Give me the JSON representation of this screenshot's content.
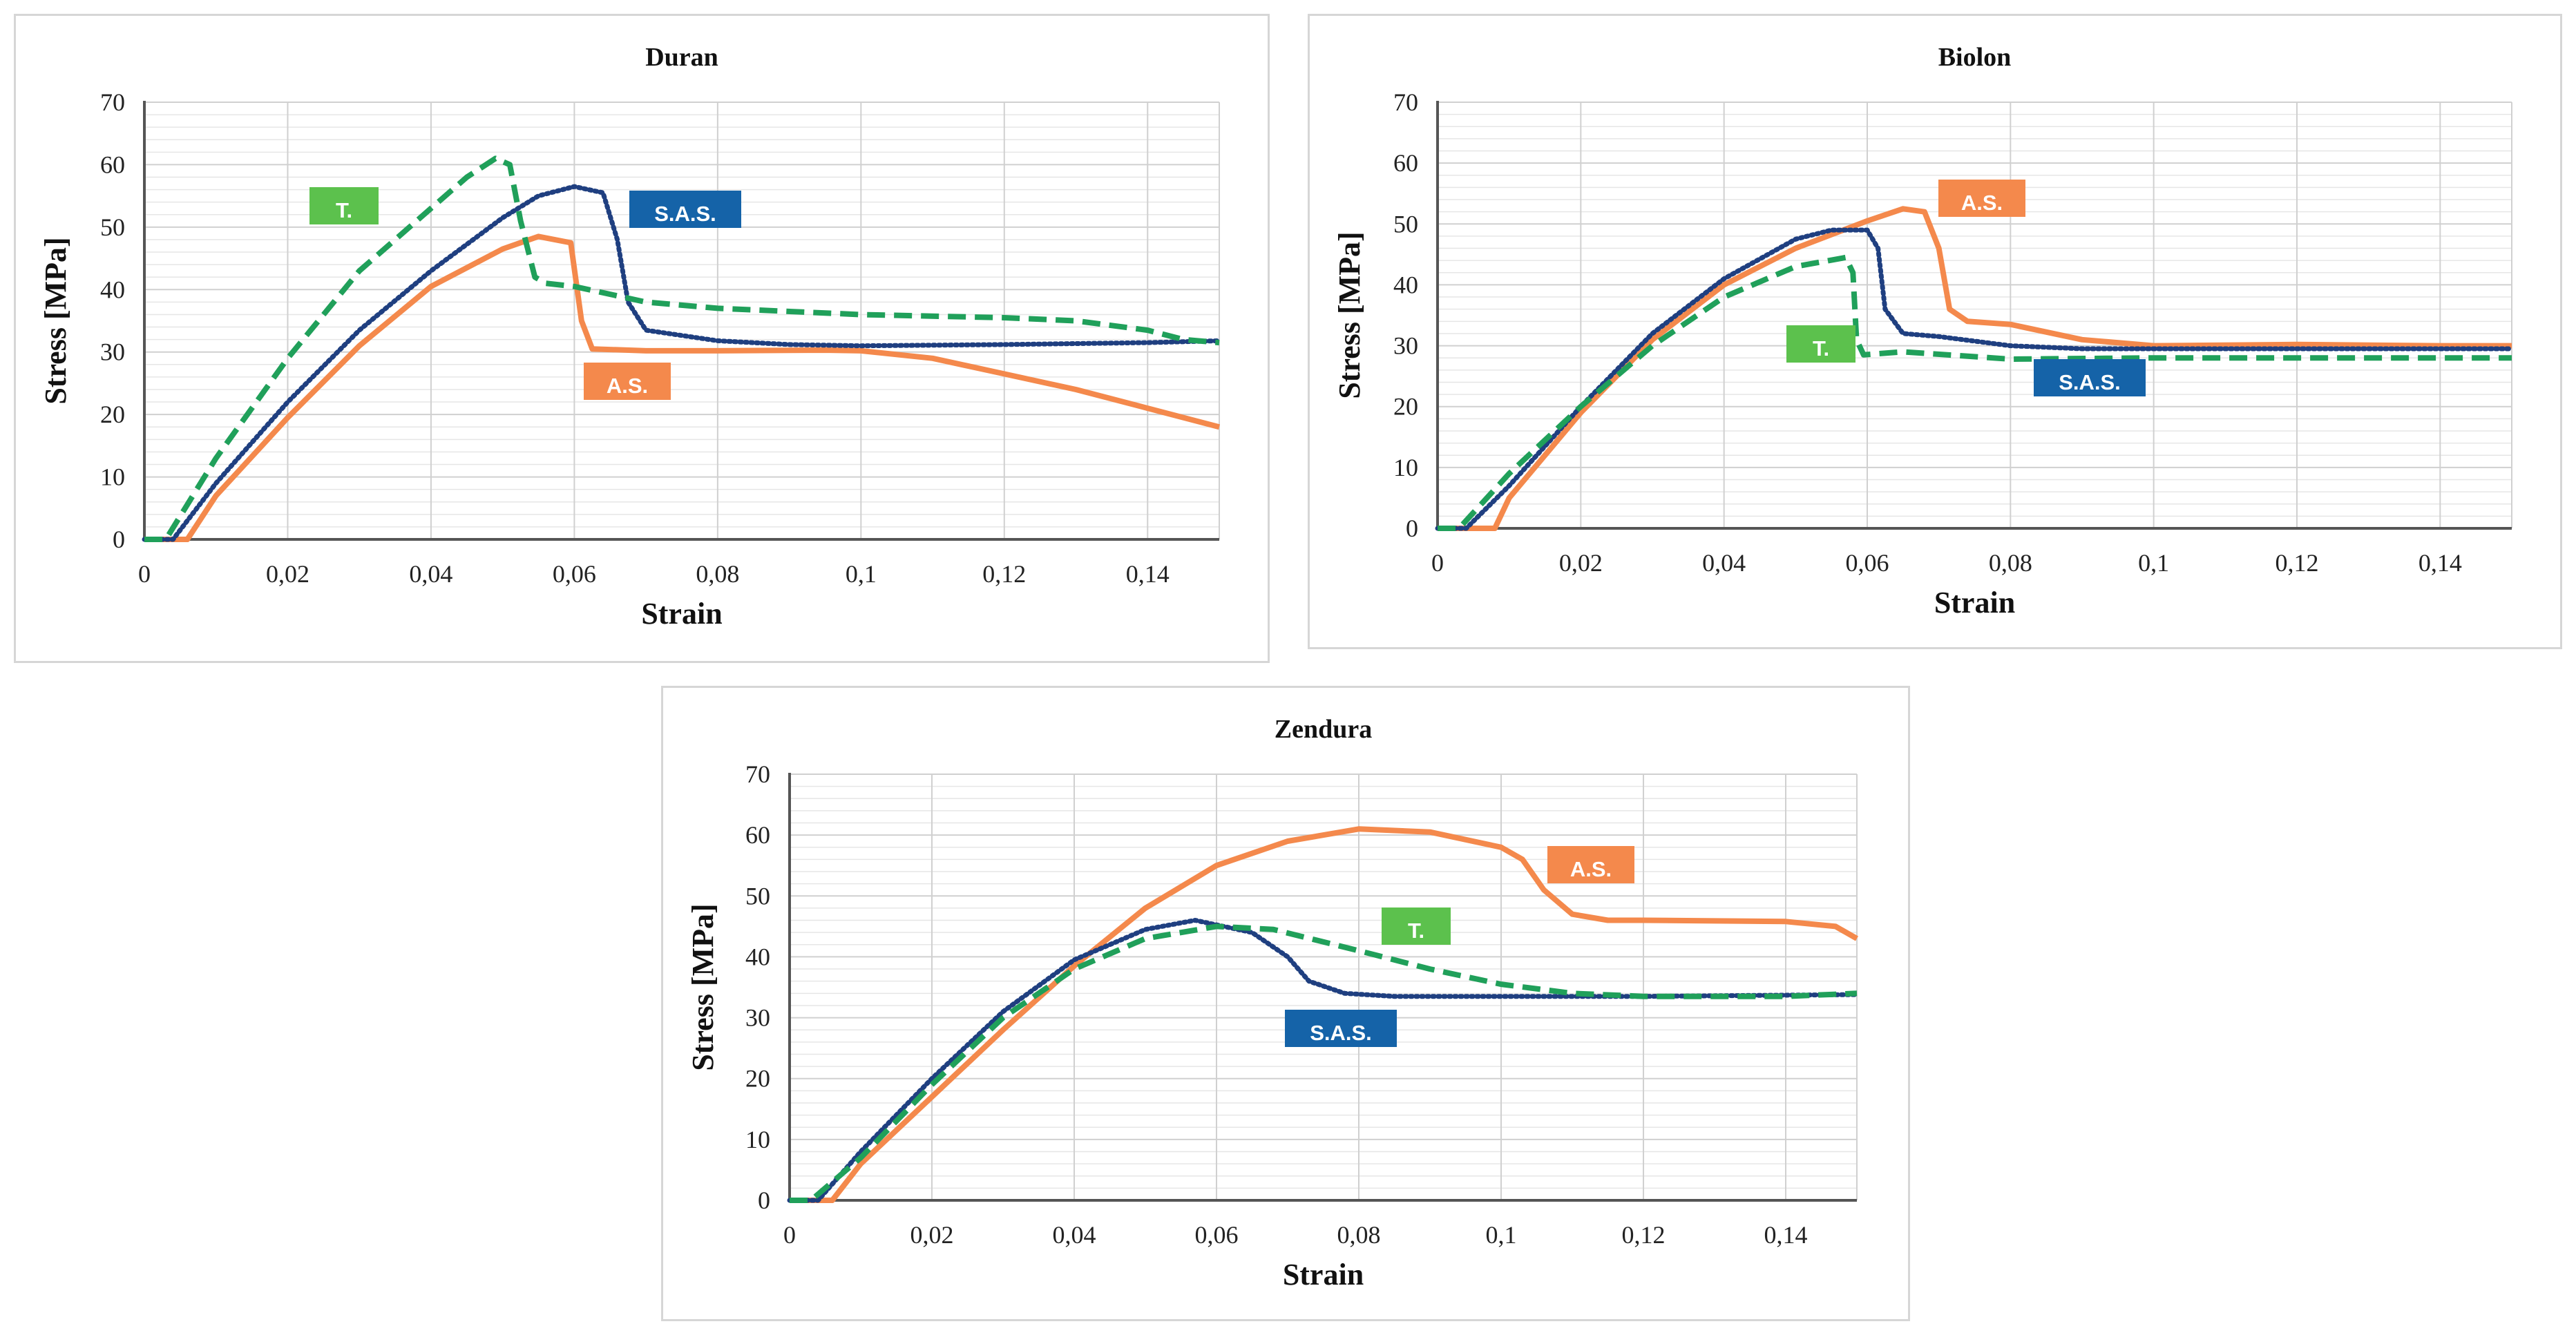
{
  "chart_data": [
    {
      "type": "line",
      "title": "Duran",
      "xlabel": "Strain",
      "ylabel": "Stress [MPa]",
      "xlim": [
        0,
        0.15
      ],
      "ylim": [
        0,
        70
      ],
      "xticks": [
        0,
        0.02,
        0.04,
        0.06,
        0.08,
        0.1,
        0.12,
        0.14
      ],
      "xtick_labels": [
        "0",
        "0,02",
        "0,04",
        "0,06",
        "0,08",
        "0,1",
        "0,12",
        "0,14"
      ],
      "yticks": [
        0,
        10,
        20,
        30,
        40,
        50,
        60,
        70
      ],
      "ytick_labels": [
        "0",
        "10",
        "20",
        "30",
        "40",
        "50",
        "60",
        "70"
      ],
      "grid": true,
      "series": [
        {
          "name": "A.S.",
          "label": "A.S.",
          "color": "#f4894c",
          "dash": "solid",
          "points": [
            [
              0,
              0
            ],
            [
              0.006,
              0
            ],
            [
              0.01,
              7
            ],
            [
              0.02,
              19.5
            ],
            [
              0.03,
              31
            ],
            [
              0.04,
              40.5
            ],
            [
              0.05,
              46.5
            ],
            [
              0.055,
              48.5
            ],
            [
              0.0595,
              47.5
            ],
            [
              0.061,
              35
            ],
            [
              0.0625,
              30.5
            ],
            [
              0.07,
              30.2
            ],
            [
              0.08,
              30.2
            ],
            [
              0.095,
              30.3
            ],
            [
              0.1,
              30.2
            ],
            [
              0.11,
              29
            ],
            [
              0.12,
              26.5
            ],
            [
              0.13,
              24
            ],
            [
              0.14,
              21
            ],
            [
              0.15,
              18
            ]
          ]
        },
        {
          "name": "S.A.S.",
          "label": "S.A.S.",
          "color": "#1f3f80",
          "dash": "dotted",
          "points": [
            [
              0,
              0
            ],
            [
              0.004,
              0
            ],
            [
              0.01,
              9
            ],
            [
              0.02,
              22
            ],
            [
              0.03,
              33.5
            ],
            [
              0.04,
              43
            ],
            [
              0.05,
              51.5
            ],
            [
              0.055,
              55
            ],
            [
              0.06,
              56.5
            ],
            [
              0.064,
              55.5
            ],
            [
              0.066,
              48
            ],
            [
              0.0675,
              38
            ],
            [
              0.07,
              33.5
            ],
            [
              0.08,
              31.8
            ],
            [
              0.09,
              31.2
            ],
            [
              0.1,
              31
            ],
            [
              0.12,
              31.2
            ],
            [
              0.14,
              31.5
            ],
            [
              0.15,
              31.8
            ]
          ]
        },
        {
          "name": "T.",
          "label": "T.",
          "color": "#20a05a",
          "dash": "dashed",
          "points": [
            [
              0,
              0
            ],
            [
              0.003,
              0
            ],
            [
              0.01,
              13
            ],
            [
              0.02,
              29
            ],
            [
              0.03,
              43
            ],
            [
              0.04,
              53
            ],
            [
              0.045,
              58
            ],
            [
              0.049,
              61
            ],
            [
              0.051,
              60
            ],
            [
              0.0525,
              51
            ],
            [
              0.0545,
              42
            ],
            [
              0.056,
              41
            ],
            [
              0.06,
              40.5
            ],
            [
              0.07,
              38
            ],
            [
              0.08,
              37
            ],
            [
              0.1,
              36
            ],
            [
              0.12,
              35.5
            ],
            [
              0.13,
              35
            ],
            [
              0.14,
              33.5
            ],
            [
              0.145,
              32
            ],
            [
              0.15,
              31.5
            ]
          ]
        }
      ]
    },
    {
      "type": "line",
      "title": "Biolon",
      "xlabel": "Strain",
      "ylabel": "Stress [MPa]",
      "xlim": [
        0,
        0.15
      ],
      "ylim": [
        0,
        70
      ],
      "xticks": [
        0,
        0.02,
        0.04,
        0.06,
        0.08,
        0.1,
        0.12,
        0.14
      ],
      "xtick_labels": [
        "0",
        "0,02",
        "0,04",
        "0,06",
        "0,08",
        "0,1",
        "0,12",
        "0,14"
      ],
      "yticks": [
        0,
        10,
        20,
        30,
        40,
        50,
        60,
        70
      ],
      "ytick_labels": [
        "0",
        "10",
        "20",
        "30",
        "40",
        "50",
        "60",
        "70"
      ],
      "grid": true,
      "series": [
        {
          "name": "A.S.",
          "label": "A.S.",
          "color": "#f4894c",
          "dash": "solid",
          "points": [
            [
              0,
              0
            ],
            [
              0.008,
              0
            ],
            [
              0.01,
              5
            ],
            [
              0.02,
              19
            ],
            [
              0.03,
              31
            ],
            [
              0.04,
              40
            ],
            [
              0.05,
              46
            ],
            [
              0.06,
              50.5
            ],
            [
              0.065,
              52.5
            ],
            [
              0.068,
              52
            ],
            [
              0.07,
              46
            ],
            [
              0.0715,
              36
            ],
            [
              0.074,
              34
            ],
            [
              0.08,
              33.5
            ],
            [
              0.09,
              31
            ],
            [
              0.1,
              30
            ],
            [
              0.12,
              30.2
            ],
            [
              0.14,
              30
            ],
            [
              0.15,
              30
            ]
          ]
        },
        {
          "name": "S.A.S.",
          "label": "S.A.S.",
          "color": "#1f3f80",
          "dash": "dotted",
          "points": [
            [
              0,
              0
            ],
            [
              0.004,
              0
            ],
            [
              0.01,
              7
            ],
            [
              0.02,
              20
            ],
            [
              0.03,
              32
            ],
            [
              0.04,
              41
            ],
            [
              0.05,
              47.5
            ],
            [
              0.055,
              49
            ],
            [
              0.06,
              49
            ],
            [
              0.0615,
              46
            ],
            [
              0.0625,
              36
            ],
            [
              0.065,
              32
            ],
            [
              0.07,
              31.5
            ],
            [
              0.08,
              30
            ],
            [
              0.09,
              29.5
            ],
            [
              0.1,
              29.5
            ],
            [
              0.12,
              29.5
            ],
            [
              0.15,
              29.5
            ]
          ]
        },
        {
          "name": "T.",
          "label": "T.",
          "color": "#20a05a",
          "dash": "dashed",
          "points": [
            [
              0,
              0
            ],
            [
              0.003,
              0
            ],
            [
              0.01,
              9
            ],
            [
              0.02,
              20
            ],
            [
              0.03,
              30
            ],
            [
              0.04,
              38
            ],
            [
              0.05,
              43
            ],
            [
              0.057,
              44.5
            ],
            [
              0.058,
              42
            ],
            [
              0.0585,
              31
            ],
            [
              0.0595,
              28.5
            ],
            [
              0.065,
              29
            ],
            [
              0.08,
              27.8
            ],
            [
              0.1,
              28
            ],
            [
              0.12,
              28
            ],
            [
              0.15,
              28
            ]
          ]
        }
      ]
    },
    {
      "type": "line",
      "title": "Zendura",
      "xlabel": "Strain",
      "ylabel": "Stress [MPa]",
      "xlim": [
        0,
        0.15
      ],
      "ylim": [
        0,
        70
      ],
      "xticks": [
        0,
        0.02,
        0.04,
        0.06,
        0.08,
        0.1,
        0.12,
        0.14
      ],
      "xtick_labels": [
        "0",
        "0,02",
        "0,04",
        "0,06",
        "0,08",
        "0,1",
        "0,12",
        "0,14"
      ],
      "yticks": [
        0,
        10,
        20,
        30,
        40,
        50,
        60,
        70
      ],
      "ytick_labels": [
        "0",
        "10",
        "20",
        "30",
        "40",
        "50",
        "60",
        "70"
      ],
      "grid": true,
      "series": [
        {
          "name": "A.S.",
          "label": "A.S.",
          "color": "#f4894c",
          "dash": "solid",
          "points": [
            [
              0,
              0
            ],
            [
              0.006,
              0
            ],
            [
              0.01,
              6
            ],
            [
              0.02,
              17
            ],
            [
              0.03,
              28
            ],
            [
              0.04,
              38.5
            ],
            [
              0.05,
              48
            ],
            [
              0.06,
              55
            ],
            [
              0.07,
              59
            ],
            [
              0.08,
              61
            ],
            [
              0.09,
              60.5
            ],
            [
              0.1,
              58
            ],
            [
              0.103,
              56
            ],
            [
              0.106,
              51
            ],
            [
              0.11,
              47
            ],
            [
              0.115,
              46
            ],
            [
              0.12,
              46
            ],
            [
              0.14,
              45.8
            ],
            [
              0.147,
              45
            ],
            [
              0.15,
              43
            ]
          ]
        },
        {
          "name": "S.A.S.",
          "label": "S.A.S.",
          "color": "#1f3f80",
          "dash": "dotted",
          "points": [
            [
              0,
              0
            ],
            [
              0.004,
              0
            ],
            [
              0.01,
              8
            ],
            [
              0.02,
              20
            ],
            [
              0.03,
              31
            ],
            [
              0.04,
              39.5
            ],
            [
              0.05,
              44.5
            ],
            [
              0.057,
              46
            ],
            [
              0.065,
              44
            ],
            [
              0.07,
              40
            ],
            [
              0.073,
              36
            ],
            [
              0.078,
              34
            ],
            [
              0.085,
              33.5
            ],
            [
              0.1,
              33.5
            ],
            [
              0.12,
              33.5
            ],
            [
              0.15,
              33.8
            ]
          ]
        },
        {
          "name": "T.",
          "label": "T.",
          "color": "#20a05a",
          "dash": "dashed",
          "points": [
            [
              0,
              0
            ],
            [
              0.003,
              0
            ],
            [
              0.01,
              7
            ],
            [
              0.02,
              19
            ],
            [
              0.03,
              30
            ],
            [
              0.04,
              38
            ],
            [
              0.05,
              43
            ],
            [
              0.06,
              45
            ],
            [
              0.068,
              44.5
            ],
            [
              0.08,
              41
            ],
            [
              0.09,
              38
            ],
            [
              0.1,
              35.5
            ],
            [
              0.11,
              34
            ],
            [
              0.12,
              33.5
            ],
            [
              0.14,
              33.5
            ],
            [
              0.15,
              34
            ]
          ]
        }
      ]
    }
  ]
}
